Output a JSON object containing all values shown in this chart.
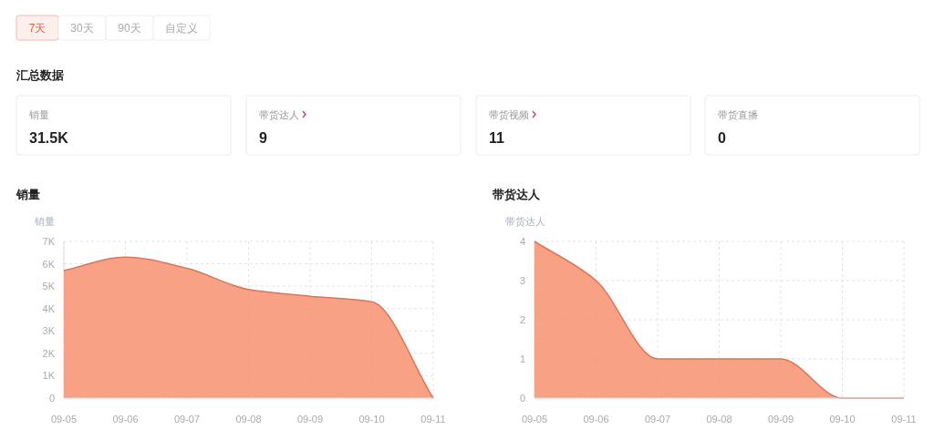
{
  "chart_data": [
    {
      "type": "other",
      "title": "汇总数据",
      "annotations": [
        "7天",
        "30天",
        "90天",
        "自定义",
        "销量",
        "31.5K",
        "带货达人",
        "9",
        "带货视频",
        "11",
        "带货直播",
        "0"
      ]
    },
    {
      "type": "area",
      "title": "销量",
      "ylabel": "销量",
      "categories": [
        "09-05",
        "09-06",
        "09-07",
        "09-08",
        "09-09",
        "09-10",
        "09-11"
      ],
      "series": [
        {
          "color": "#f7906e",
          "values": [
            5700,
            6300,
            5800,
            4850,
            4550,
            4300,
            0
          ]
        }
      ],
      "ylim": [
        0,
        7000
      ],
      "yticks": [
        0,
        {
          "value": 1000,
          "label": "1K"
        },
        {
          "value": 2000,
          "label": "2K"
        },
        {
          "value": 3000,
          "label": "3K"
        },
        {
          "value": 4000,
          "label": "4K"
        },
        {
          "value": 5000,
          "label": "5K"
        },
        {
          "value": 6000,
          "label": "6K"
        },
        {
          "value": 7000,
          "label": "7K"
        }
      ],
      "grid": true
    },
    {
      "type": "area",
      "title": "带货达人",
      "ylabel": "带货达人",
      "categories": [
        "09-05",
        "09-06",
        "09-07",
        "09-08",
        "09-09",
        "09-10",
        "09-11"
      ],
      "series": [
        {
          "color": "#f7906e",
          "values": [
            4,
            3,
            1,
            1,
            1,
            0,
            0
          ]
        }
      ],
      "ylim": [
        0,
        4
      ],
      "yticks": [
        0,
        1,
        2,
        3,
        4
      ],
      "grid": true
    }
  ]
}
